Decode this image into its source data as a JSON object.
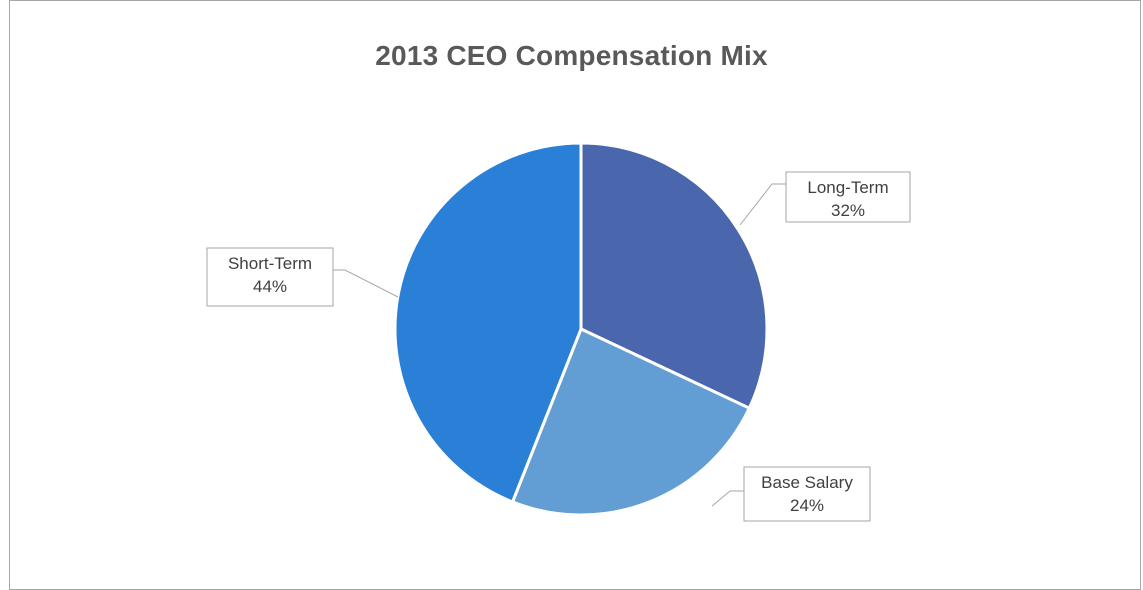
{
  "chart_data": {
    "type": "pie",
    "title": "2013 CEO Compensation Mix",
    "categories": [
      "Long-Term",
      "Base Salary",
      "Short-Term"
    ],
    "values": [
      32,
      24,
      44
    ],
    "value_labels": [
      "32%",
      "24%",
      "44%"
    ],
    "colors": [
      "#4a67ad",
      "#629ed3",
      "#2a7fd7"
    ],
    "start_angle_deg": 0,
    "direction": "clockwise",
    "data_labels": "outside-with-leader-lines"
  }
}
